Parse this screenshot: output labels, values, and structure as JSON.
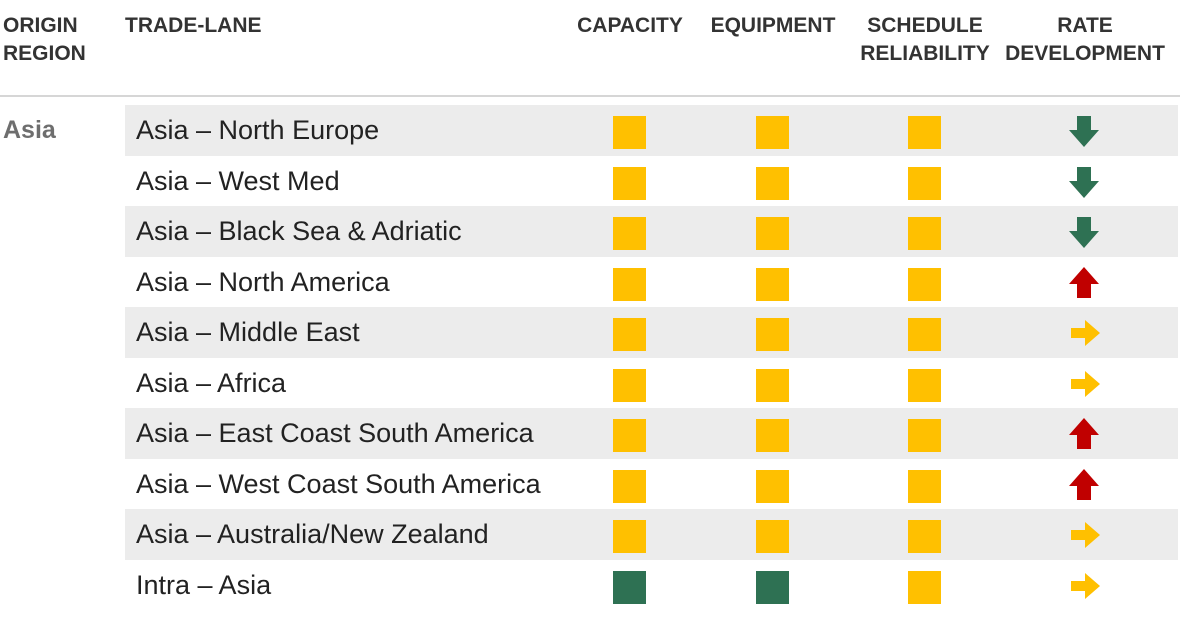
{
  "headers": {
    "origin_region": [
      "ORIGIN",
      "REGION"
    ],
    "trade_lane": "TRADE-LANE",
    "capacity": "CAPACITY",
    "equipment": "EQUIPMENT",
    "schedule_reliability": [
      "SCHEDULE",
      "RELIABILITY"
    ],
    "rate_development": [
      "RATE",
      "DEVELOPMENT"
    ]
  },
  "region": "Asia",
  "colors": {
    "amber": "#ffc000",
    "green_square": "#2e7153",
    "arrow_down_green": "#2e7153",
    "arrow_up_red": "#c00000",
    "arrow_right_amber": "#ffc000",
    "row_shade": "#ececec"
  },
  "rows": [
    {
      "lane": "Asia – North Europe",
      "capacity": "amber",
      "equipment": "amber",
      "schedule_reliability": "amber",
      "rate": "down"
    },
    {
      "lane": "Asia – West Med",
      "capacity": "amber",
      "equipment": "amber",
      "schedule_reliability": "amber",
      "rate": "down"
    },
    {
      "lane": "Asia – Black Sea & Adriatic",
      "capacity": "amber",
      "equipment": "amber",
      "schedule_reliability": "amber",
      "rate": "down"
    },
    {
      "lane": "Asia – North America",
      "capacity": "amber",
      "equipment": "amber",
      "schedule_reliability": "amber",
      "rate": "up"
    },
    {
      "lane": "Asia – Middle East",
      "capacity": "amber",
      "equipment": "amber",
      "schedule_reliability": "amber",
      "rate": "right"
    },
    {
      "lane": "Asia – Africa",
      "capacity": "amber",
      "equipment": "amber",
      "schedule_reliability": "amber",
      "rate": "right"
    },
    {
      "lane": "Asia – East Coast South America",
      "capacity": "amber",
      "equipment": "amber",
      "schedule_reliability": "amber",
      "rate": "up"
    },
    {
      "lane": "Asia – West Coast South America",
      "capacity": "amber",
      "equipment": "amber",
      "schedule_reliability": "amber",
      "rate": "up"
    },
    {
      "lane": "Asia – Australia/New Zealand",
      "capacity": "amber",
      "equipment": "amber",
      "schedule_reliability": "amber",
      "rate": "right"
    },
    {
      "lane": "Intra – Asia",
      "capacity": "green",
      "equipment": "green",
      "schedule_reliability": "amber",
      "rate": "right"
    }
  ]
}
